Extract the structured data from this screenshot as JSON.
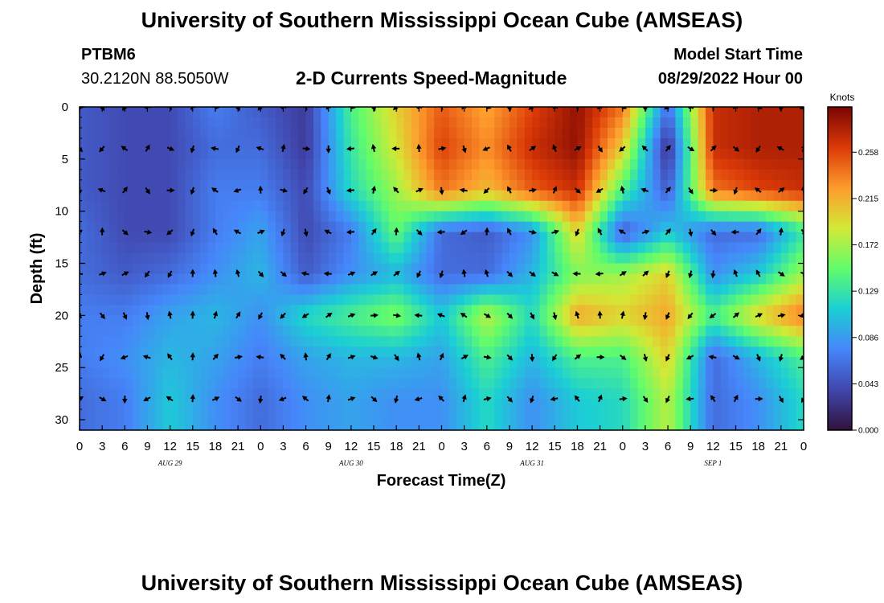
{
  "page": {
    "title_top": "University of Southern Mississippi Ocean Cube (AMSEAS)",
    "title_bottom": "University of Southern Mississippi Ocean Cube (AMSEAS)",
    "station_id": "PTBM6",
    "station_coords": "30.2120N  88.5050W",
    "model_start_label": "Model Start Time",
    "model_start_value": "08/29/2022 Hour 00"
  },
  "chart_data": {
    "type": "heatmap",
    "title": "2-D Currents Speed-Magnitude",
    "xlabel": "Forecast Time(Z)",
    "ylabel": "Depth (ft)",
    "x_ticks": [
      "0",
      "3",
      "6",
      "9",
      "12",
      "15",
      "18",
      "21",
      "0",
      "3",
      "6",
      "9",
      "12",
      "15",
      "18",
      "21",
      "0",
      "3",
      "6",
      "9",
      "12",
      "15",
      "18",
      "21",
      "0",
      "3",
      "6",
      "9",
      "12",
      "15",
      "18",
      "21",
      "0"
    ],
    "date_labels": [
      {
        "label": "AUG 29",
        "tick_index": 4
      },
      {
        "label": "AUG 30",
        "tick_index": 12
      },
      {
        "label": "AUG 31",
        "tick_index": 20
      },
      {
        "label": "SEP 1",
        "tick_index": 28
      }
    ],
    "y_ticks": [
      0,
      5,
      10,
      15,
      20,
      25,
      30
    ],
    "ylim": [
      0,
      31
    ],
    "colorbar": {
      "unit": "Knots",
      "ticks": [
        "0.258",
        "0.215",
        "0.172",
        "0.129",
        "0.086",
        "0.043",
        "0.000"
      ],
      "range": [
        0.0,
        0.3
      ]
    },
    "depths_ft": [
      0,
      4,
      8,
      12,
      16,
      20,
      24,
      28
    ],
    "hours": [
      0,
      6,
      12,
      18,
      24,
      30,
      36,
      42,
      48,
      54,
      60,
      66,
      72,
      78,
      84,
      90,
      96
    ],
    "speed_knots": [
      [
        0.05,
        0.04,
        0.04,
        0.07,
        0.05,
        0.03,
        0.14,
        0.2,
        0.25,
        0.22,
        0.26,
        0.29,
        0.24,
        0.06,
        0.27,
        0.28,
        0.28
      ],
      [
        0.05,
        0.04,
        0.04,
        0.06,
        0.06,
        0.03,
        0.13,
        0.19,
        0.26,
        0.23,
        0.27,
        0.29,
        0.2,
        0.02,
        0.27,
        0.28,
        0.28
      ],
      [
        0.05,
        0.04,
        0.04,
        0.07,
        0.07,
        0.04,
        0.12,
        0.17,
        0.24,
        0.21,
        0.25,
        0.27,
        0.14,
        0.05,
        0.24,
        0.26,
        0.27
      ],
      [
        0.06,
        0.04,
        0.04,
        0.07,
        0.09,
        0.04,
        0.07,
        0.15,
        0.06,
        0.05,
        0.08,
        0.2,
        0.05,
        0.11,
        0.06,
        0.06,
        0.13
      ],
      [
        0.06,
        0.05,
        0.06,
        0.08,
        0.1,
        0.05,
        0.08,
        0.1,
        0.06,
        0.06,
        0.1,
        0.16,
        0.17,
        0.2,
        0.08,
        0.11,
        0.17
      ],
      [
        0.07,
        0.07,
        0.09,
        0.1,
        0.08,
        0.12,
        0.14,
        0.16,
        0.11,
        0.18,
        0.12,
        0.22,
        0.2,
        0.22,
        0.14,
        0.2,
        0.24
      ],
      [
        0.07,
        0.08,
        0.1,
        0.09,
        0.07,
        0.09,
        0.1,
        0.1,
        0.09,
        0.14,
        0.1,
        0.14,
        0.14,
        0.2,
        0.06,
        0.1,
        0.14
      ],
      [
        0.06,
        0.07,
        0.11,
        0.08,
        0.06,
        0.08,
        0.09,
        0.08,
        0.08,
        0.12,
        0.08,
        0.11,
        0.12,
        0.18,
        0.06,
        0.08,
        0.12
      ]
    ],
    "arrow_depths_ft": [
      0,
      4,
      8,
      12,
      16,
      20,
      24,
      28
    ],
    "arrow_hours": [
      0,
      3,
      6,
      9,
      12,
      15,
      18,
      21,
      24,
      27,
      30,
      33,
      36,
      39,
      42,
      45,
      48,
      51,
      54,
      57,
      60,
      63,
      66,
      69,
      72,
      75,
      78,
      81,
      84,
      87,
      90,
      93,
      96
    ],
    "colormap_stops": [
      "#30123b",
      "#4146ad",
      "#4686fa",
      "#1bcfd4",
      "#61fc6c",
      "#d2e935",
      "#fe9b2d",
      "#db3a07",
      "#7a0403"
    ]
  }
}
